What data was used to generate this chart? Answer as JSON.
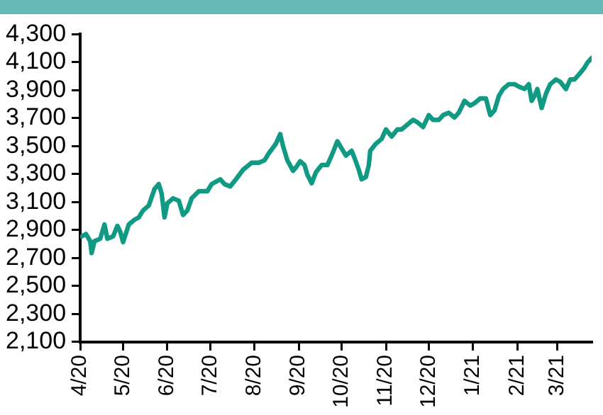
{
  "chart_data": {
    "type": "line",
    "color": "#109a84",
    "x": [
      "2020-04-02",
      "2020-04-05",
      "2020-04-08",
      "2020-04-09",
      "2020-04-11",
      "2020-04-15",
      "2020-04-18",
      "2020-04-20",
      "2020-04-24",
      "2020-04-27",
      "2020-04-29",
      "2020-05-01",
      "2020-05-05",
      "2020-05-09",
      "2020-05-12",
      "2020-05-15",
      "2020-05-19",
      "2020-05-23",
      "2020-05-26",
      "2020-05-28",
      "2020-05-30",
      "2020-06-01",
      "2020-06-05",
      "2020-06-09",
      "2020-06-12",
      "2020-06-15",
      "2020-06-18",
      "2020-06-23",
      "2020-06-29",
      "2020-07-02",
      "2020-07-08",
      "2020-07-11",
      "2020-07-15",
      "2020-07-19",
      "2020-07-24",
      "2020-07-30",
      "2020-08-04",
      "2020-08-08",
      "2020-08-11",
      "2020-08-16",
      "2020-08-19",
      "2020-08-21",
      "2020-08-24",
      "2020-08-28",
      "2020-08-30",
      "2020-09-02",
      "2020-09-05",
      "2020-09-07",
      "2020-09-10",
      "2020-09-13",
      "2020-09-17",
      "2020-09-21",
      "2020-09-24",
      "2020-09-28",
      "2020-10-01",
      "2020-10-04",
      "2020-10-08",
      "2020-10-10",
      "2020-10-13",
      "2020-10-15",
      "2020-10-18",
      "2020-10-20",
      "2020-10-21",
      "2020-10-25",
      "2020-10-29",
      "2020-11-01",
      "2020-11-05",
      "2020-11-09",
      "2020-11-12",
      "2020-11-16",
      "2020-11-20",
      "2020-11-23",
      "2020-11-27",
      "2020-12-01",
      "2020-12-04",
      "2020-12-08",
      "2020-12-11",
      "2020-12-15",
      "2020-12-19",
      "2020-12-22",
      "2020-12-26",
      "2020-12-30",
      "2021-01-02",
      "2021-01-06",
      "2021-01-10",
      "2021-01-13",
      "2021-01-16",
      "2021-01-19",
      "2021-01-22",
      "2021-01-26",
      "2021-01-30",
      "2021-02-02",
      "2021-02-06",
      "2021-02-09",
      "2021-02-11",
      "2021-02-13",
      "2021-02-15",
      "2021-02-18",
      "2021-02-21",
      "2021-02-24",
      "2021-02-28",
      "2021-03-03",
      "2021-03-07",
      "2021-03-10",
      "2021-03-13",
      "2021-03-16",
      "2021-03-20",
      "2021-03-22",
      "2021-03-25"
    ],
    "values": [
      2855,
      2872,
      2821,
      2736,
      2821,
      2838,
      2940,
      2838,
      2855,
      2930,
      2889,
      2814,
      2940,
      2974,
      2991,
      3041,
      3076,
      3194,
      3229,
      3161,
      2991,
      3092,
      3127,
      3110,
      3008,
      3041,
      3127,
      3178,
      3178,
      3229,
      3263,
      3229,
      3212,
      3263,
      3331,
      3382,
      3382,
      3399,
      3449,
      3518,
      3586,
      3500,
      3399,
      3324,
      3348,
      3393,
      3365,
      3296,
      3235,
      3314,
      3365,
      3365,
      3433,
      3535,
      3484,
      3433,
      3467,
      3416,
      3331,
      3263,
      3280,
      3365,
      3467,
      3518,
      3552,
      3620,
      3569,
      3620,
      3620,
      3654,
      3688,
      3671,
      3637,
      3722,
      3688,
      3688,
      3722,
      3739,
      3705,
      3739,
      3824,
      3790,
      3807,
      3841,
      3841,
      3722,
      3756,
      3858,
      3909,
      3943,
      3943,
      3926,
      3909,
      3943,
      3824,
      3858,
      3909,
      3773,
      3875,
      3943,
      3977,
      3960,
      3909,
      3977,
      3977,
      4011,
      4062,
      4096,
      4130
    ],
    "xlim": [
      "2020-04-01",
      "2021-03-25"
    ],
    "xticks": [
      {
        "value": "2020-04-01",
        "label": "4/20"
      },
      {
        "value": "2020-05-01",
        "label": "5/20"
      },
      {
        "value": "2020-06-01",
        "label": "6/20"
      },
      {
        "value": "2020-07-01",
        "label": "7/20"
      },
      {
        "value": "2020-08-01",
        "label": "8/20"
      },
      {
        "value": "2020-09-01",
        "label": "9/20"
      },
      {
        "value": "2020-10-01",
        "label": "10/20"
      },
      {
        "value": "2020-11-01",
        "label": "11/20"
      },
      {
        "value": "2020-12-01",
        "label": "12/20"
      },
      {
        "value": "2021-01-01",
        "label": "1/21"
      },
      {
        "value": "2021-02-01",
        "label": "2/21"
      },
      {
        "value": "2021-03-01",
        "label": "3/21"
      }
    ],
    "ylim": [
      2100,
      4300
    ],
    "yticks": [
      {
        "value": 2100,
        "label": "2,100"
      },
      {
        "value": 2300,
        "label": "2,300"
      },
      {
        "value": 2500,
        "label": "2,500"
      },
      {
        "value": 2700,
        "label": "2,700"
      },
      {
        "value": 2900,
        "label": "2,900"
      },
      {
        "value": 3100,
        "label": "3,100"
      },
      {
        "value": 3300,
        "label": "3,300"
      },
      {
        "value": 3500,
        "label": "3,500"
      },
      {
        "value": 3700,
        "label": "3,700"
      },
      {
        "value": 3900,
        "label": "3,900"
      },
      {
        "value": 4100,
        "label": "4,100"
      },
      {
        "value": 4300,
        "label": "4,300"
      }
    ],
    "grid": false,
    "legend": false,
    "marker": "none",
    "line_style": "solid"
  }
}
